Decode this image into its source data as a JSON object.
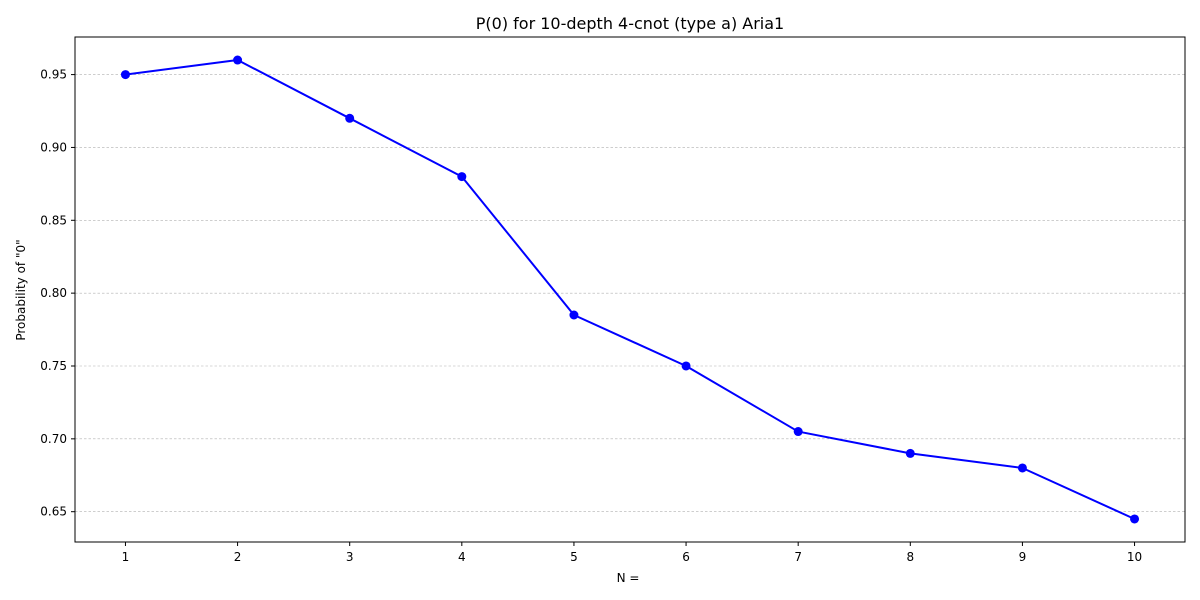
{
  "chart_data": {
    "type": "line",
    "title": "P(0) for 10-depth 4-cnot (type a) Aria1",
    "xlabel": "N =",
    "ylabel": "Probability of \"0\"",
    "x": [
      1,
      2,
      3,
      4,
      5,
      6,
      7,
      8,
      9,
      10
    ],
    "series": [
      {
        "values": [
          0.95,
          0.96,
          0.92,
          0.88,
          0.785,
          0.75,
          0.705,
          0.69,
          0.68,
          0.645
        ]
      }
    ],
    "xlim": [
      0.55,
      10.45
    ],
    "ylim": [
      0.6292,
      0.9758
    ],
    "xticks": [
      "1",
      "2",
      "3",
      "4",
      "5",
      "6",
      "7",
      "8",
      "9",
      "10"
    ],
    "yticks": [
      "0.65",
      "0.70",
      "0.75",
      "0.80",
      "0.85",
      "0.90",
      "0.95"
    ],
    "grid": "y-only",
    "line_color": "#0000ff",
    "marker": "circle"
  }
}
